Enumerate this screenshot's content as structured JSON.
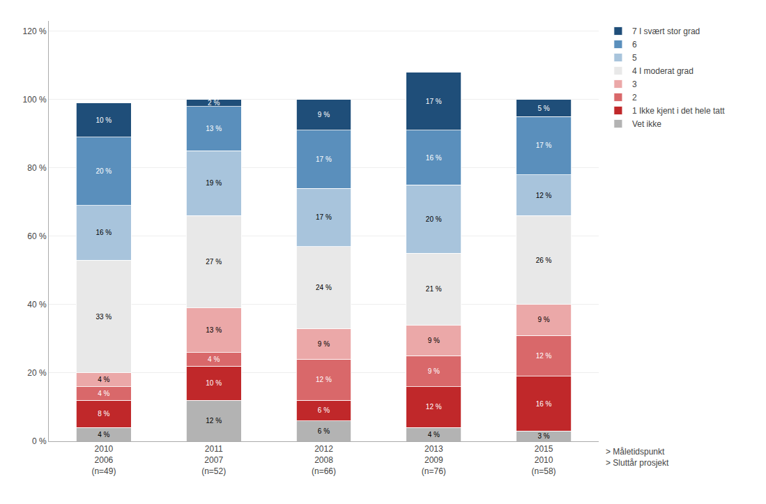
{
  "chart_data": {
    "type": "bar",
    "stacked": true,
    "categories": [
      "2010\n2006\n(n=49)",
      "2011\n2007\n(n=52)",
      "2012\n2008\n(n=66)",
      "2013\n2009\n(n=76)",
      "2015\n2010\n(n=58)"
    ],
    "series": [
      {
        "name": "Vet ikke",
        "color": "#b3b3b3",
        "values": [
          4,
          12,
          6,
          4,
          3
        ],
        "value_labels": [
          "4 %",
          "12 %",
          "6 %",
          "4 %",
          "3 %"
        ]
      },
      {
        "name": "1 Ikke kjent i det hele tatt",
        "color": "#c0282a",
        "values": [
          8,
          10,
          6,
          12,
          16
        ],
        "value_labels": [
          "8 %",
          "10 %",
          "6 %",
          "12 %",
          "16 %"
        ]
      },
      {
        "name": "2",
        "color": "#d9686a",
        "values": [
          4,
          4,
          12,
          9,
          12
        ],
        "value_labels": [
          "4 %",
          "4 %",
          "12 %",
          "9 %",
          "12 %"
        ]
      },
      {
        "name": "3",
        "color": "#eba8a8",
        "values": [
          4,
          13,
          9,
          9,
          9
        ],
        "value_labels": [
          "4 %",
          "13 %",
          "9 %",
          "9 %",
          "9 %"
        ]
      },
      {
        "name": "4 I moderat grad",
        "color": "#e8e8e8",
        "values": [
          33,
          27,
          24,
          21,
          26
        ],
        "value_labels": [
          "33 %",
          "27 %",
          "24 %",
          "21 %",
          "26 %"
        ]
      },
      {
        "name": "5",
        "color": "#a8c4dc",
        "values": [
          16,
          19,
          17,
          20,
          12
        ],
        "value_labels": [
          "16 %",
          "19 %",
          "17 %",
          "20 %",
          "12 %"
        ]
      },
      {
        "name": "6",
        "color": "#5a8fbc",
        "values": [
          20,
          13,
          17,
          16,
          17
        ],
        "value_labels": [
          "20 %",
          "13 %",
          "17 %",
          "16 %",
          "17 %"
        ]
      },
      {
        "name": "7 I svært stor grad",
        "color": "#1f4e79",
        "values": [
          10,
          2,
          9,
          17,
          5
        ],
        "value_labels": [
          "10 %",
          "2 %",
          "9 %",
          "17 %",
          "5 %"
        ]
      }
    ],
    "ylim": [
      0,
      123
    ],
    "yticks": [
      {
        "value": 0,
        "label": "0 %"
      },
      {
        "value": 20,
        "label": "20 %"
      },
      {
        "value": 40,
        "label": "40 %"
      },
      {
        "value": 60,
        "label": "60 %"
      },
      {
        "value": 80,
        "label": "80 %"
      },
      {
        "value": 100,
        "label": "100 %"
      },
      {
        "value": 120,
        "label": "120 %"
      }
    ],
    "grid": true,
    "data_labels": true,
    "legend": "right",
    "annotations": [
      "> Måletidspunkt",
      "> Sluttår prosjekt"
    ]
  }
}
